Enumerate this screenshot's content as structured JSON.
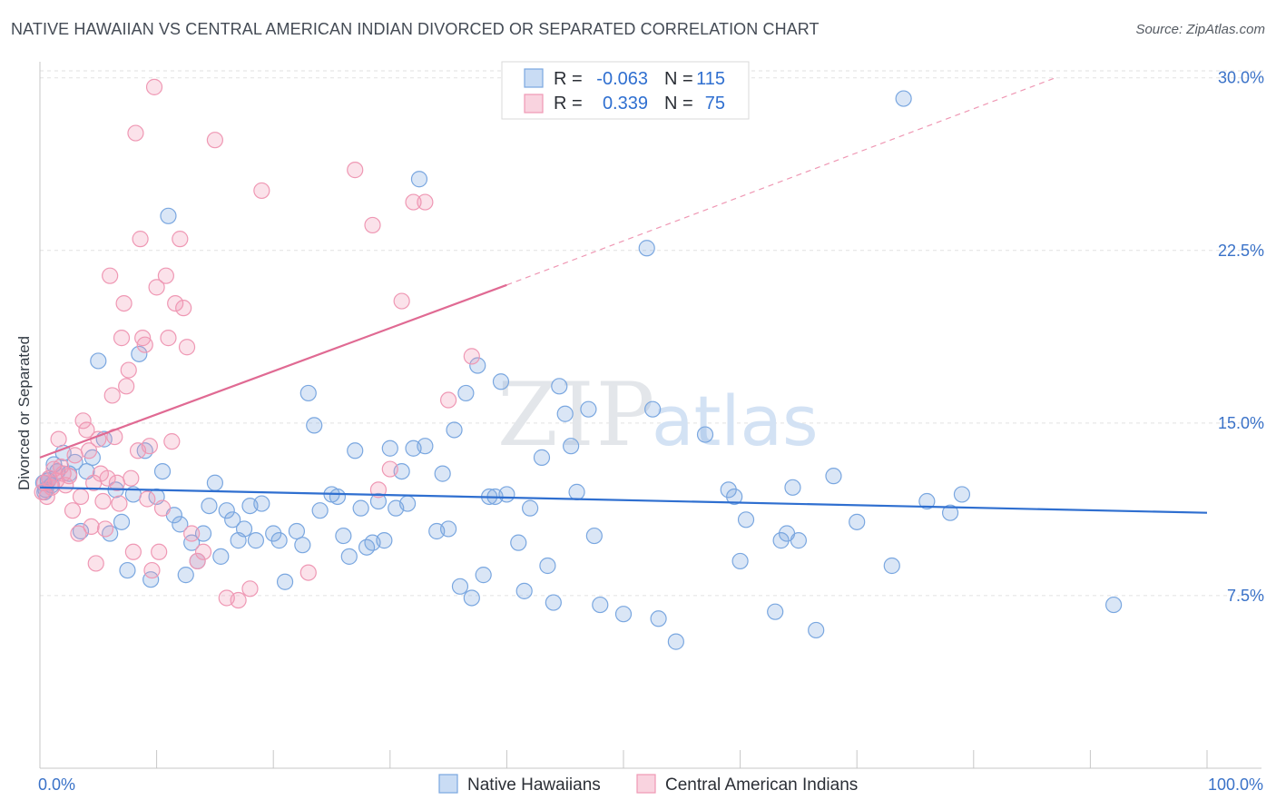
{
  "header": {
    "title": "NATIVE HAWAIIAN VS CENTRAL AMERICAN INDIAN DIVORCED OR SEPARATED CORRELATION CHART",
    "source": "Source: ZipAtlas.com"
  },
  "watermark": {
    "zip": "ZIP",
    "atlas": "atlas"
  },
  "legend": {
    "rows": [
      {
        "r_label": "R =",
        "r_value": "-0.063",
        "n_label": "N =",
        "n_value": "115",
        "color": "#7aa7e0"
      },
      {
        "r_label": "R =",
        "r_value": "0.339",
        "n_label": "N =",
        "n_value": "75",
        "color": "#ef98b4"
      }
    ]
  },
  "bottom_legend": [
    {
      "label": "Native Hawaiians",
      "color": "#7aa7e0"
    },
    {
      "label": "Central American Indians",
      "color": "#ef98b4"
    }
  ],
  "chart_data": {
    "type": "scatter",
    "title": "NATIVE HAWAIIAN VS CENTRAL AMERICAN INDIAN DIVORCED OR SEPARATED CORRELATION CHART",
    "xlabel": "",
    "ylabel": "Divorced or Separated",
    "xlim": [
      0,
      100
    ],
    "ylim": [
      0,
      30.7
    ],
    "x_tick_labels": [
      "0.0%",
      "100.0%"
    ],
    "y_ticks": [
      7.5,
      15.0,
      22.5,
      30.0
    ],
    "y_tick_labels": [
      "7.5%",
      "15.0%",
      "22.5%",
      "30.0%"
    ],
    "grid": "horizontal dashed",
    "legend_position": "top-center",
    "colors": {
      "blue": "#7aa7e0",
      "blue_line": "#2f6fd0",
      "pink": "#ef98b4",
      "pink_line": "#e06a93"
    },
    "series": [
      {
        "name": "Native Hawaiians",
        "color": "#7aa7e0",
        "trend": {
          "x": [
            0,
            100
          ],
          "y": [
            12.2,
            11.1
          ],
          "style": "solid"
        },
        "points": [
          [
            0.3,
            12.4
          ],
          [
            0.5,
            12.1
          ],
          [
            0.8,
            12.6
          ],
          [
            1.0,
            12.3
          ],
          [
            1.2,
            13.2
          ],
          [
            1.5,
            12.9
          ],
          [
            2.0,
            13.7
          ],
          [
            2.5,
            12.8
          ],
          [
            0.4,
            12.0
          ],
          [
            0.7,
            12.5
          ],
          [
            3.0,
            13.3
          ],
          [
            3.5,
            10.3
          ],
          [
            4.0,
            12.9
          ],
          [
            4.5,
            13.5
          ],
          [
            5.0,
            17.7
          ],
          [
            5.5,
            14.3
          ],
          [
            6.0,
            10.2
          ],
          [
            6.5,
            12.1
          ],
          [
            7.0,
            10.7
          ],
          [
            7.5,
            8.6
          ],
          [
            8.0,
            11.9
          ],
          [
            8.5,
            18.0
          ],
          [
            9.0,
            13.8
          ],
          [
            9.5,
            8.2
          ],
          [
            10.0,
            11.8
          ],
          [
            10.5,
            12.9
          ],
          [
            11.0,
            24.0
          ],
          [
            11.5,
            11.0
          ],
          [
            12.0,
            10.6
          ],
          [
            12.5,
            8.4
          ],
          [
            13.0,
            9.8
          ],
          [
            13.5,
            9.0
          ],
          [
            14.0,
            10.2
          ],
          [
            14.5,
            11.4
          ],
          [
            15.0,
            12.4
          ],
          [
            15.5,
            9.2
          ],
          [
            16.0,
            11.2
          ],
          [
            16.5,
            10.8
          ],
          [
            17.0,
            9.9
          ],
          [
            17.5,
            10.4
          ],
          [
            18.0,
            11.4
          ],
          [
            18.5,
            9.9
          ],
          [
            19.0,
            11.5
          ],
          [
            20.0,
            10.2
          ],
          [
            20.5,
            9.9
          ],
          [
            21.0,
            8.1
          ],
          [
            22.0,
            10.3
          ],
          [
            22.5,
            9.7
          ],
          [
            23.0,
            16.3
          ],
          [
            23.5,
            14.9
          ],
          [
            24.0,
            11.2
          ],
          [
            25.0,
            11.9
          ],
          [
            25.5,
            11.8
          ],
          [
            26.0,
            10.1
          ],
          [
            26.5,
            9.2
          ],
          [
            27.0,
            13.8
          ],
          [
            27.5,
            11.3
          ],
          [
            28.0,
            9.6
          ],
          [
            28.5,
            9.8
          ],
          [
            29.0,
            11.6
          ],
          [
            29.5,
            9.9
          ],
          [
            30.0,
            13.9
          ],
          [
            30.5,
            11.3
          ],
          [
            31.0,
            12.9
          ],
          [
            31.5,
            11.5
          ],
          [
            32.0,
            13.9
          ],
          [
            32.5,
            25.6
          ],
          [
            33.0,
            14.0
          ],
          [
            34.0,
            10.3
          ],
          [
            34.5,
            12.8
          ],
          [
            35.0,
            10.4
          ],
          [
            35.5,
            14.7
          ],
          [
            36.0,
            7.9
          ],
          [
            36.5,
            16.3
          ],
          [
            37.0,
            7.4
          ],
          [
            37.5,
            17.5
          ],
          [
            38.0,
            8.4
          ],
          [
            38.5,
            11.8
          ],
          [
            39.0,
            11.8
          ],
          [
            39.5,
            16.8
          ],
          [
            40.0,
            11.9
          ],
          [
            41.0,
            9.8
          ],
          [
            41.5,
            7.7
          ],
          [
            42.0,
            11.3
          ],
          [
            43.0,
            13.5
          ],
          [
            43.5,
            8.8
          ],
          [
            44.0,
            7.2
          ],
          [
            44.5,
            16.6
          ],
          [
            45.0,
            15.4
          ],
          [
            45.5,
            14.0
          ],
          [
            46.0,
            12.0
          ],
          [
            47.0,
            15.6
          ],
          [
            47.5,
            10.1
          ],
          [
            48.0,
            7.1
          ],
          [
            50.0,
            6.7
          ],
          [
            52.0,
            22.6
          ],
          [
            52.5,
            15.6
          ],
          [
            53.0,
            6.5
          ],
          [
            54.5,
            5.5
          ],
          [
            57.0,
            14.5
          ],
          [
            59.0,
            12.1
          ],
          [
            59.5,
            11.8
          ],
          [
            60.0,
            9.0
          ],
          [
            60.5,
            10.8
          ],
          [
            63.0,
            6.8
          ],
          [
            63.5,
            9.9
          ],
          [
            64.0,
            10.2
          ],
          [
            64.5,
            12.2
          ],
          [
            65.0,
            9.9
          ],
          [
            66.5,
            6.0
          ],
          [
            68.0,
            12.7
          ],
          [
            70.0,
            10.7
          ],
          [
            73.0,
            8.8
          ],
          [
            74.0,
            29.1
          ],
          [
            76.0,
            11.6
          ],
          [
            78.0,
            11.1
          ],
          [
            79.0,
            11.9
          ],
          [
            92.0,
            7.1
          ]
        ]
      },
      {
        "name": "Central American Indians",
        "color": "#ef98b4",
        "trend": {
          "x": [
            0,
            40
          ],
          "y": [
            13.5,
            21.0
          ],
          "style": "solid",
          "extension": {
            "x": [
              40,
              87
            ],
            "y": [
              21.0,
              30.0
            ],
            "style": "dashed"
          }
        },
        "points": [
          [
            0.2,
            12.0
          ],
          [
            0.4,
            12.4
          ],
          [
            0.6,
            11.8
          ],
          [
            0.8,
            12.6
          ],
          [
            1.0,
            12.2
          ],
          [
            1.2,
            13.0
          ],
          [
            1.4,
            12.5
          ],
          [
            1.6,
            14.3
          ],
          [
            1.8,
            13.1
          ],
          [
            2.0,
            12.8
          ],
          [
            2.2,
            12.3
          ],
          [
            2.5,
            12.7
          ],
          [
            2.8,
            11.2
          ],
          [
            3.0,
            13.6
          ],
          [
            3.3,
            10.2
          ],
          [
            3.5,
            11.8
          ],
          [
            3.7,
            15.1
          ],
          [
            4.0,
            14.7
          ],
          [
            4.2,
            13.8
          ],
          [
            4.4,
            10.5
          ],
          [
            4.6,
            12.4
          ],
          [
            4.8,
            8.9
          ],
          [
            5.0,
            14.3
          ],
          [
            5.2,
            12.8
          ],
          [
            5.4,
            11.6
          ],
          [
            5.6,
            10.4
          ],
          [
            5.8,
            12.6
          ],
          [
            6.0,
            21.4
          ],
          [
            6.2,
            16.2
          ],
          [
            6.4,
            14.4
          ],
          [
            6.6,
            12.4
          ],
          [
            6.8,
            11.5
          ],
          [
            7.0,
            18.7
          ],
          [
            7.2,
            20.2
          ],
          [
            7.4,
            16.6
          ],
          [
            7.6,
            17.3
          ],
          [
            7.8,
            12.6
          ],
          [
            8.0,
            9.4
          ],
          [
            8.2,
            27.6
          ],
          [
            8.4,
            13.8
          ],
          [
            8.6,
            23.0
          ],
          [
            8.8,
            18.7
          ],
          [
            9.0,
            18.4
          ],
          [
            9.2,
            11.7
          ],
          [
            9.4,
            14.0
          ],
          [
            9.6,
            8.6
          ],
          [
            9.8,
            29.6
          ],
          [
            10.0,
            20.9
          ],
          [
            10.2,
            9.4
          ],
          [
            10.5,
            11.3
          ],
          [
            10.8,
            21.4
          ],
          [
            11.0,
            18.7
          ],
          [
            11.3,
            14.2
          ],
          [
            11.6,
            20.2
          ],
          [
            12.0,
            23.0
          ],
          [
            12.3,
            20.0
          ],
          [
            12.6,
            18.3
          ],
          [
            13.0,
            10.2
          ],
          [
            13.5,
            9.0
          ],
          [
            14.0,
            9.4
          ],
          [
            15.0,
            27.3
          ],
          [
            16.0,
            7.4
          ],
          [
            17.0,
            7.3
          ],
          [
            18.0,
            7.8
          ],
          [
            19.0,
            25.1
          ],
          [
            23.0,
            8.5
          ],
          [
            27.0,
            26.0
          ],
          [
            28.5,
            23.6
          ],
          [
            29.0,
            12.1
          ],
          [
            30.0,
            13.0
          ],
          [
            31.0,
            20.3
          ],
          [
            32.0,
            24.6
          ],
          [
            33.0,
            24.6
          ],
          [
            35.0,
            16.0
          ],
          [
            37.0,
            17.9
          ]
        ]
      }
    ]
  }
}
